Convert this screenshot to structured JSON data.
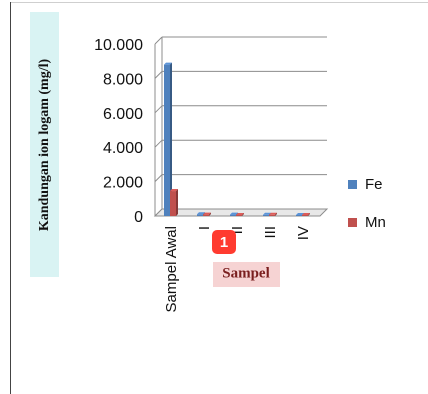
{
  "chart_data": {
    "type": "bar",
    "title": "",
    "xlabel": "Sampel",
    "ylabel": "Kandungan ion logam (mg/l)",
    "categories": [
      "Sampel Awal",
      "I",
      "II",
      "III",
      "IV"
    ],
    "series": [
      {
        "name": "Fe",
        "color": "#4f81bd",
        "values": [
          8.8,
          0.1,
          0.08,
          0.07,
          0.06
        ]
      },
      {
        "name": "Mn",
        "color": "#c0504d",
        "values": [
          1.45,
          0.08,
          0.06,
          0.07,
          0.06
        ]
      }
    ],
    "ylim": [
      0,
      10
    ],
    "yticks": [
      "10.000",
      "8.000",
      "6.000",
      "4.000",
      "2.000",
      "0"
    ],
    "grid": true,
    "legend_position": "right"
  },
  "badge": {
    "label": "1"
  }
}
